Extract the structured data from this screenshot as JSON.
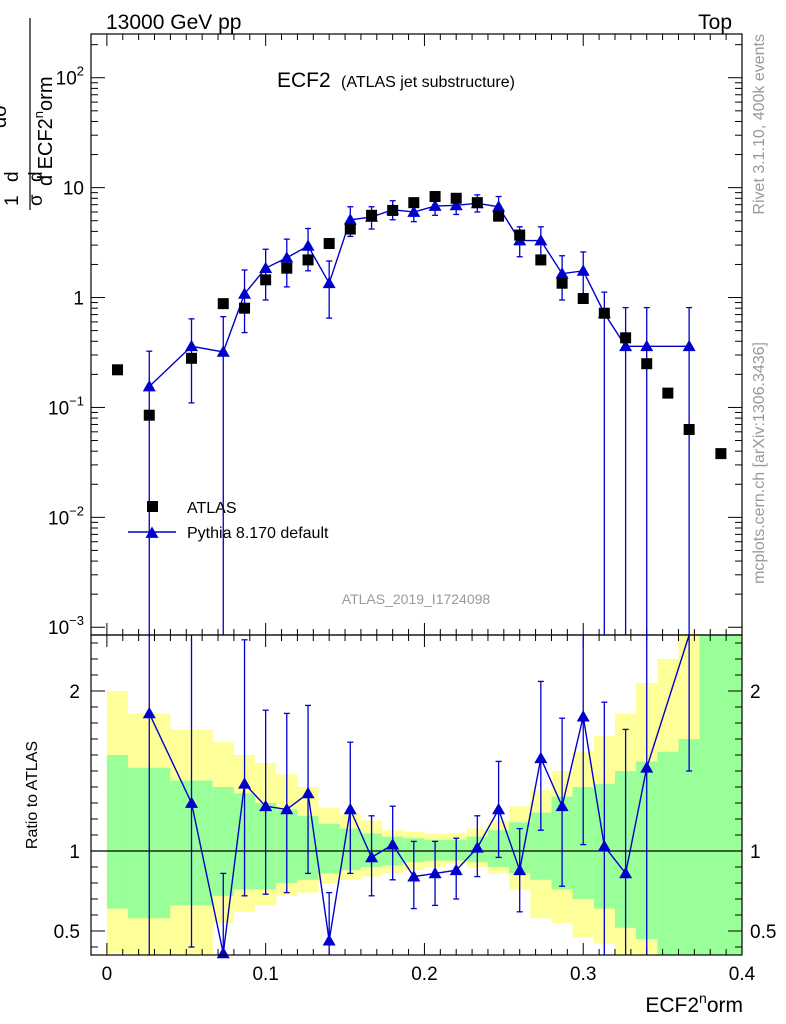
{
  "header": {
    "left": "13000 GeV pp",
    "right": "Top"
  },
  "side_text": {
    "top": "Rivet 3.1.10,  400k events",
    "bottom": "mcplots.cern.ch [arXiv:1306.3436]"
  },
  "chart_data": [
    {
      "type": "scatter",
      "panel": "main",
      "title": "ECF2",
      "subtitle": "(ATLAS jet substructure)",
      "watermark": "ATLAS_2019_I1724098",
      "ylabel_parts": {
        "prefix": "1",
        "sigma": "σ",
        "num": "dσ",
        "den_d": "d ECF2",
        "den_sup": "n",
        "den_rest": "orm"
      },
      "y_scale": "log",
      "xlim": [
        -0.01,
        0.4
      ],
      "ylim": [
        0.00085,
        250
      ],
      "yticks": [
        {
          "value": 0.001,
          "base": "10",
          "exp": "−3"
        },
        {
          "value": 0.01,
          "base": "10",
          "exp": "−2"
        },
        {
          "value": 0.1,
          "base": "10",
          "exp": "−1"
        },
        {
          "value": 1,
          "base": "1",
          "exp": ""
        },
        {
          "value": 10,
          "base": "10",
          "exp": ""
        },
        {
          "value": 100,
          "base": "10",
          "exp": "2"
        }
      ],
      "legend_position": "lower-left",
      "series": [
        {
          "name": "ATLAS",
          "marker": "square",
          "color": "#000000",
          "x": [
            0.0067,
            0.0267,
            0.0533,
            0.0733,
            0.0867,
            0.1,
            0.1133,
            0.1267,
            0.14,
            0.1533,
            0.1667,
            0.18,
            0.1933,
            0.2067,
            0.22,
            0.2333,
            0.2467,
            0.26,
            0.2733,
            0.2867,
            0.3,
            0.3133,
            0.3267,
            0.34,
            0.3533,
            0.3667,
            0.3867
          ],
          "y": [
            0.22,
            0.085,
            0.28,
            0.88,
            0.8,
            1.45,
            1.85,
            2.2,
            3.1,
            4.2,
            5.6,
            6.2,
            7.3,
            8.3,
            8.0,
            7.3,
            5.5,
            3.7,
            2.2,
            1.35,
            0.98,
            0.72,
            0.43,
            0.25,
            0.135,
            0.063,
            0.038
          ]
        },
        {
          "name": "Pythia 8.170 default",
          "marker": "triangle",
          "color": "#0000cc",
          "x": [
            0.0267,
            0.0533,
            0.0733,
            0.0867,
            0.1,
            0.1133,
            0.1267,
            0.14,
            0.1533,
            0.1667,
            0.18,
            0.1933,
            0.2067,
            0.22,
            0.2333,
            0.2467,
            0.26,
            0.2733,
            0.2867,
            0.3,
            0.3133,
            0.3267,
            0.34,
            0.3667
          ],
          "y": [
            0.155,
            0.36,
            0.32,
            1.08,
            1.85,
            2.3,
            2.95,
            1.35,
            5.1,
            5.4,
            6.3,
            6.0,
            6.8,
            6.9,
            7.2,
            6.7,
            3.3,
            3.3,
            1.65,
            1.75,
            0.72,
            0.36,
            0.36,
            0.36
          ],
          "yerr_low": [
            0.155,
            0.25,
            0.32,
            0.6,
            0.9,
            1.05,
            1.2,
            0.7,
            1.5,
            1.2,
            1.2,
            1.1,
            1.2,
            1.2,
            1.2,
            1.3,
            0.95,
            1.0,
            0.7,
            0.8,
            0.72,
            0.36,
            0.36,
            0.36
          ],
          "yerr_high": [
            0.17,
            0.28,
            0.35,
            0.7,
            0.9,
            1.1,
            1.3,
            0.8,
            1.6,
            1.3,
            1.3,
            1.3,
            1.3,
            1.3,
            1.4,
            1.6,
            1.1,
            1.1,
            0.75,
            0.85,
            0.4,
            0.45,
            0.45,
            0.45
          ]
        }
      ]
    },
    {
      "type": "line",
      "panel": "ratio",
      "ylabel": "Ratio to ATLAS",
      "xlabel_parts": {
        "base": "ECF2",
        "sup": "n",
        "rest": "orm"
      },
      "xlim": [
        -0.01,
        0.4
      ],
      "ylim": [
        0.35,
        2.35
      ],
      "xticks": [
        0,
        0.1,
        0.2,
        0.3,
        0.4
      ],
      "xtick_labels": [
        "0",
        "0.1",
        "0.2",
        "0.3",
        "0.4"
      ],
      "yticks": [
        0.5,
        1,
        2
      ],
      "ytick_labels": [
        "0.5",
        "1",
        "2"
      ],
      "band_edges": [
        0,
        0.0133,
        0.04,
        0.0667,
        0.08,
        0.0933,
        0.1067,
        0.12,
        0.1333,
        0.1467,
        0.16,
        0.1733,
        0.1867,
        0.2,
        0.2133,
        0.2267,
        0.24,
        0.2533,
        0.2667,
        0.28,
        0.2933,
        0.3067,
        0.32,
        0.3333,
        0.3467,
        0.36,
        0.3733,
        0.4
      ],
      "band_green_low": [
        0.64,
        0.58,
        0.66,
        0.72,
        0.76,
        0.76,
        0.8,
        0.82,
        0.86,
        0.88,
        0.9,
        0.91,
        0.93,
        0.94,
        0.94,
        0.93,
        0.9,
        0.86,
        0.82,
        0.76,
        0.7,
        0.64,
        0.52,
        0.45,
        0.35,
        0.35,
        0.35
      ],
      "band_green_high": [
        1.6,
        1.52,
        1.44,
        1.4,
        1.36,
        1.3,
        1.26,
        1.22,
        1.17,
        1.14,
        1.11,
        1.09,
        1.08,
        1.07,
        1.07,
        1.09,
        1.13,
        1.18,
        1.24,
        1.34,
        1.4,
        1.42,
        1.5,
        1.56,
        1.62,
        1.7,
        2.35
      ],
      "band_yellow_low": [
        0.36,
        0.35,
        0.35,
        0.55,
        0.62,
        0.66,
        0.72,
        0.74,
        0.8,
        0.82,
        0.84,
        0.86,
        0.88,
        0.9,
        0.92,
        0.9,
        0.86,
        0.76,
        0.58,
        0.55,
        0.46,
        0.42,
        0.35,
        0.35,
        0.35,
        0.35,
        0.35
      ],
      "band_yellow_high": [
        2.0,
        1.86,
        1.76,
        1.68,
        1.6,
        1.55,
        1.48,
        1.4,
        1.27,
        1.23,
        1.19,
        1.13,
        1.12,
        1.11,
        1.11,
        1.14,
        1.19,
        1.28,
        1.38,
        1.5,
        1.62,
        1.72,
        1.86,
        2.05,
        2.2,
        2.35,
        2.35
      ],
      "band_colors": {
        "green": "#99ff99",
        "yellow": "#ffff99"
      },
      "series": [
        {
          "name": "Pythia 8.170 default",
          "color": "#0000cc",
          "x": [
            0.0267,
            0.0533,
            0.0733,
            0.0867,
            0.1,
            0.1133,
            0.1267,
            0.14,
            0.1533,
            0.1667,
            0.18,
            0.1933,
            0.2067,
            0.22,
            0.2333,
            0.2467,
            0.26,
            0.2733,
            0.2867,
            0.3,
            0.3133,
            0.3267,
            0.34,
            0.3667
          ],
          "y": [
            1.86,
            1.3,
            0.36,
            1.42,
            1.28,
            1.26,
            1.36,
            0.44,
            1.26,
            0.96,
            1.04,
            0.84,
            0.86,
            0.88,
            1.02,
            1.26,
            0.88,
            1.58,
            1.28,
            1.84,
            1.03,
            0.86,
            1.52,
            2.5
          ],
          "yerr_low": [
            1.8,
            0.9,
            0.35,
            0.7,
            0.55,
            0.52,
            0.5,
            0.24,
            0.4,
            0.24,
            0.22,
            0.2,
            0.2,
            0.18,
            0.18,
            0.3,
            0.26,
            0.45,
            0.5,
            0.8,
            1.03,
            0.86,
            1.52,
            1.0
          ],
          "yerr_high": [
            1.0,
            1.1,
            0.5,
            0.9,
            0.6,
            0.6,
            0.55,
            0.3,
            0.42,
            0.26,
            0.24,
            0.22,
            0.2,
            0.2,
            0.2,
            0.3,
            0.26,
            0.48,
            0.55,
            1.0,
            0.9,
            0.9,
            1.0,
            1.0
          ]
        }
      ]
    }
  ]
}
